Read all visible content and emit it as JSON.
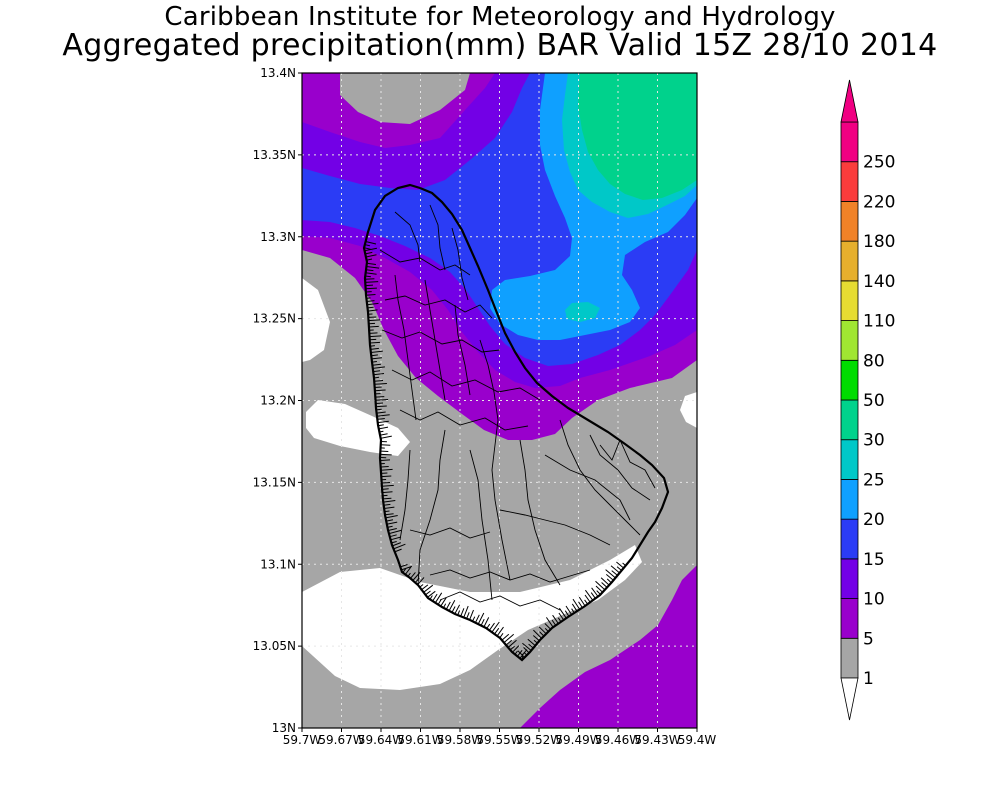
{
  "title": {
    "line1": "Caribbean Institute for Meteorology and Hydrology",
    "line2": "Aggregated precipitation(mm) BAR Valid 15Z 28/10 2014"
  },
  "map": {
    "region": "Barbados",
    "lat_ticks": [
      "13.4N",
      "13.35N",
      "13.3N",
      "13.25N",
      "13.2N",
      "13.15N",
      "13.1N",
      "13.05N",
      "13N"
    ],
    "lon_ticks": [
      "59.7W",
      "59.67W",
      "59.64W",
      "59.61W",
      "59.58W",
      "59.55W",
      "59.52W",
      "59.49W",
      "59.46W",
      "59.43W",
      "59.4W"
    ],
    "grid": true
  },
  "colorbar": {
    "levels": [
      {
        "label": "1",
        "color": "#a6a6a6"
      },
      {
        "label": "5",
        "color": "#9900cc"
      },
      {
        "label": "10",
        "color": "#7300e6"
      },
      {
        "label": "15",
        "color": "#2b3cf5"
      },
      {
        "label": "20",
        "color": "#0fa0ff"
      },
      {
        "label": "25",
        "color": "#00c8c8"
      },
      {
        "label": "30",
        "color": "#00d28c"
      },
      {
        "label": "50",
        "color": "#00dc00"
      },
      {
        "label": "80",
        "color": "#a0e632"
      },
      {
        "label": "110",
        "color": "#e6dc32"
      },
      {
        "label": "140",
        "color": "#e6af2d"
      },
      {
        "label": "180",
        "color": "#f08228"
      },
      {
        "label": "220",
        "color": "#fa3c3c"
      },
      {
        "label": "250",
        "color": "#f00082"
      }
    ],
    "below_color": "#ffffff",
    "above_color": "#f00082"
  }
}
